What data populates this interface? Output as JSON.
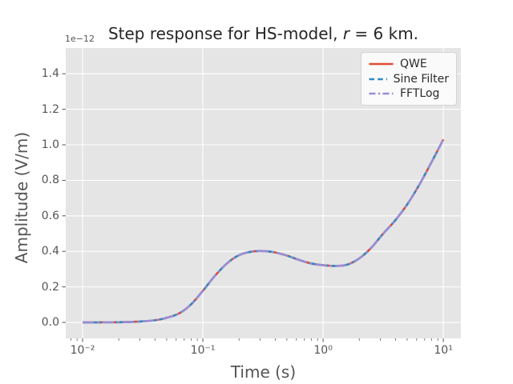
{
  "title": {
    "prefix": "Step response for HS-model, ",
    "variable": "r",
    "suffix": " = 6 km."
  },
  "axes": {
    "offset_text": "1e−12",
    "xlabel": "Time (s)",
    "ylabel": "Amplitude (V/m)",
    "background": "#E5E5E5",
    "grid_color": "#FFFFFF",
    "tick_color": "#555555",
    "text_color": "#555555",
    "title_color": "#262626"
  },
  "legend": {
    "entries": [
      {
        "label": "QWE",
        "color": "#E24A33",
        "linestyle": "solid"
      },
      {
        "label": "Sine Filter",
        "color": "#348ABD",
        "linestyle": "dashed"
      },
      {
        "label": "FFTLog",
        "color": "#988ED5",
        "linestyle": "dashdot"
      }
    ]
  },
  "chart_data": {
    "type": "line",
    "title": "Step response for HS-model, r = 6 km.",
    "xlabel": "Time (s)",
    "ylabel": "Amplitude (V/m)",
    "y_offset_text": "1e−12",
    "x_scale": "log",
    "y_scale": "linear",
    "grid": true,
    "legend_position": "upper right",
    "xlim": [
      0.00724,
      14.0
    ],
    "ylim_1e12": [
      -0.09,
      1.545
    ],
    "x_ticks": [
      {
        "value": 0.01,
        "label": "10⁻²"
      },
      {
        "value": 0.1,
        "label": "10⁻¹"
      },
      {
        "value": 1.0,
        "label": "10⁰"
      },
      {
        "value": 10.0,
        "label": "10¹"
      }
    ],
    "x_minor_ticks": [
      0.008,
      0.009,
      0.02,
      0.03,
      0.04,
      0.05,
      0.06,
      0.07,
      0.08,
      0.09,
      0.2,
      0.3,
      0.4,
      0.5,
      0.6,
      0.7,
      0.8,
      0.9,
      2,
      3,
      4,
      5,
      6,
      7,
      8,
      9
    ],
    "y_ticks": [
      {
        "value": 0.0,
        "label": "0.0"
      },
      {
        "value": 0.2,
        "label": "0.2"
      },
      {
        "value": 0.4,
        "label": "0.4"
      },
      {
        "value": 0.6,
        "label": "0.6"
      },
      {
        "value": 0.8,
        "label": "0.8"
      },
      {
        "value": 1.0,
        "label": "1.0"
      },
      {
        "value": 1.2,
        "label": "1.2"
      },
      {
        "value": 1.4,
        "label": "1.4"
      }
    ],
    "x": [
      0.01,
      0.0126,
      0.0158,
      0.02,
      0.0251,
      0.0316,
      0.0398,
      0.0501,
      0.0631,
      0.0794,
      0.1,
      0.1259,
      0.1585,
      0.1995,
      0.2512,
      0.3162,
      0.3981,
      0.5012,
      0.631,
      0.7943,
      1.0,
      1.2589,
      1.5849,
      1.9953,
      2.5119,
      3.1623,
      3.9811,
      5.0119,
      6.3096,
      7.9433,
      10.0
    ],
    "series": [
      {
        "name": "QWE",
        "color": "#E24A33",
        "linestyle": "solid",
        "values_1e12": [
          0.0,
          0.0,
          0.001,
          0.001,
          0.003,
          0.006,
          0.012,
          0.026,
          0.05,
          0.1,
          0.178,
          0.262,
          0.332,
          0.378,
          0.398,
          0.402,
          0.394,
          0.376,
          0.352,
          0.332,
          0.322,
          0.318,
          0.325,
          0.36,
          0.42,
          0.5,
          0.575,
          0.665,
          0.775,
          0.9,
          1.03
        ]
      },
      {
        "name": "Sine Filter",
        "color": "#348ABD",
        "linestyle": "dashed",
        "values_1e12": [
          0.0,
          0.0,
          0.001,
          0.001,
          0.003,
          0.006,
          0.012,
          0.026,
          0.05,
          0.1,
          0.178,
          0.262,
          0.332,
          0.378,
          0.398,
          0.402,
          0.394,
          0.376,
          0.352,
          0.332,
          0.322,
          0.318,
          0.325,
          0.36,
          0.42,
          0.5,
          0.575,
          0.665,
          0.775,
          0.9,
          1.03
        ]
      },
      {
        "name": "FFTLog",
        "color": "#988ED5",
        "linestyle": "dashdot",
        "values_1e12": [
          0.0,
          0.0,
          0.001,
          0.001,
          0.003,
          0.006,
          0.012,
          0.026,
          0.05,
          0.1,
          0.178,
          0.262,
          0.332,
          0.378,
          0.398,
          0.402,
          0.394,
          0.376,
          0.352,
          0.332,
          0.322,
          0.318,
          0.325,
          0.36,
          0.42,
          0.5,
          0.575,
          0.665,
          0.775,
          0.9,
          1.03
        ]
      }
    ]
  }
}
